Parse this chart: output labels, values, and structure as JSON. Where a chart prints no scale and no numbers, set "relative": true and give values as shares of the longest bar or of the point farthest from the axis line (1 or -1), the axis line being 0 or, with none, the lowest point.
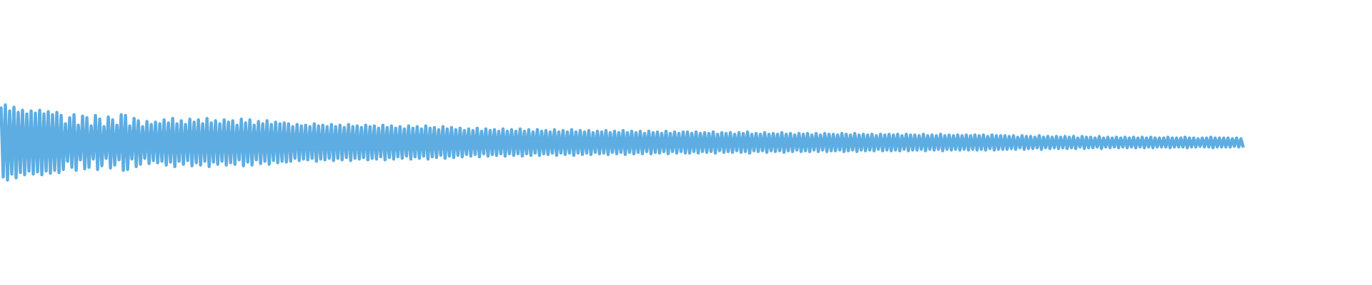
{
  "chart_data": {
    "type": "line",
    "relative": true,
    "color": "#5dade2",
    "tick_labels": false,
    "categories": [
      null,
      null,
      null,
      null,
      null,
      null,
      null,
      null,
      null,
      null,
      null,
      null,
      null,
      null,
      null,
      null,
      null,
      null,
      null,
      null,
      null,
      null,
      null,
      null,
      null,
      null,
      null,
      null,
      null,
      null,
      null,
      null,
      null,
      null,
      null,
      null,
      null,
      null,
      null,
      null,
      null,
      null,
      null,
      null,
      null,
      null,
      null,
      null,
      null,
      null,
      null,
      null,
      null,
      null,
      null,
      null,
      null,
      null,
      null,
      null,
      null,
      null,
      null,
      null,
      null,
      null,
      null,
      null,
      null,
      null,
      null,
      null,
      null,
      null,
      null,
      null,
      null,
      null,
      null,
      null,
      null,
      null,
      null,
      null,
      null,
      null,
      null,
      null,
      null,
      null,
      null,
      null,
      null,
      null,
      null,
      null,
      null,
      null,
      null,
      null,
      null,
      null,
      null,
      null,
      null,
      null,
      null,
      null,
      null,
      null,
      null,
      null,
      null,
      null,
      null,
      null,
      null,
      null,
      null,
      null,
      null,
      null,
      null,
      null,
      null,
      null,
      null,
      null,
      null,
      null,
      null,
      null,
      null,
      null,
      null,
      null,
      null,
      null,
      null,
      null,
      null,
      null,
      null,
      null,
      null,
      null,
      null,
      null,
      null,
      null,
      null,
      null,
      null,
      null,
      null,
      null,
      null,
      null,
      null,
      null,
      null,
      null,
      null,
      null,
      null,
      null,
      null,
      null,
      null,
      null,
      null,
      null,
      null,
      null,
      null,
      null,
      null,
      null,
      null,
      null,
      null,
      null,
      null,
      null,
      null,
      null,
      null,
      null,
      null,
      null,
      null,
      null,
      null,
      null,
      null,
      null,
      null,
      null,
      null,
      null,
      null,
      null,
      null,
      null,
      null,
      null,
      null,
      null,
      null,
      null,
      null,
      null,
      null,
      null,
      null,
      null,
      null,
      null,
      null,
      null,
      null,
      null,
      null,
      null,
      null,
      null,
      null,
      null,
      null,
      null,
      null,
      null,
      null,
      null,
      null,
      null,
      null,
      null,
      null,
      null,
      null,
      null,
      null,
      null,
      null,
      null,
      null,
      null,
      null,
      null,
      null,
      null,
      null,
      null,
      null,
      null,
      null,
      null,
      null,
      null,
      null,
      null,
      null,
      null,
      null,
      null,
      null,
      null,
      null,
      null,
      null,
      null,
      null,
      null,
      null,
      null,
      null,
      null,
      null,
      null,
      null,
      null,
      null,
      null,
      null,
      null,
      null,
      null,
      null,
      null,
      null,
      null,
      null,
      null,
      null,
      null,
      null,
      null,
      null,
      null,
      null,
      null,
      null,
      null,
      null,
      null,
      null,
      null,
      null,
      null,
      null,
      null,
      null,
      null,
      null,
      null,
      null,
      null,
      null,
      null,
      null,
      null,
      null,
      null,
      null,
      null,
      null,
      null,
      null,
      null,
      null,
      null,
      null,
      null,
      null,
      null,
      null,
      null,
      null,
      null,
      null,
      null,
      null,
      null,
      null,
      null,
      null,
      null,
      null,
      null,
      null,
      null,
      null,
      null,
      null,
      null,
      null,
      null,
      null,
      null,
      null,
      null,
      null,
      null,
      null,
      null,
      null,
      null,
      null,
      null,
      null,
      null,
      null,
      null,
      null,
      null,
      null,
      null,
      null,
      null,
      null,
      null,
      null,
      null,
      null,
      null,
      null,
      null,
      null,
      null,
      null,
      null,
      null,
      null,
      null,
      null,
      null,
      null,
      null,
      null,
      null,
      null,
      null,
      null,
      null,
      null,
      null,
      null,
      null,
      null,
      null,
      null,
      null,
      null,
      null,
      null,
      null,
      null,
      null,
      null,
      null,
      null,
      null,
      null,
      null,
      null,
      null,
      null,
      null,
      null,
      null,
      null,
      null,
      null,
      null,
      null,
      null,
      null,
      null,
      null,
      null,
      null,
      null,
      null,
      null,
      null,
      null,
      null,
      null,
      null,
      null,
      null,
      null,
      null,
      null,
      null,
      null,
      null,
      null,
      null,
      null,
      null,
      null,
      null,
      null,
      null,
      null,
      null,
      null,
      null,
      null,
      null,
      null,
      null,
      null,
      null,
      null,
      null,
      null,
      null,
      null,
      null,
      null,
      null,
      null,
      null,
      null,
      null,
      null,
      null,
      null,
      null,
      null,
      null,
      null,
      null,
      null,
      null,
      null,
      null,
      null,
      null,
      null,
      null,
      null,
      null,
      null,
      null,
      null,
      null,
      null,
      null,
      null,
      null,
      null,
      null,
      null,
      null,
      null,
      null,
      null,
      null,
      null,
      null,
      null,
      null,
      null,
      null,
      null,
      null,
      null,
      null,
      null,
      null,
      null,
      null,
      null,
      null,
      null,
      null,
      null,
      null,
      null,
      null,
      null,
      null,
      null,
      null,
      null,
      null,
      null,
      null,
      null,
      null,
      null,
      null,
      null,
      null,
      null,
      null,
      null,
      null,
      null,
      null,
      null,
      null,
      null,
      null,
      null,
      null,
      null,
      null,
      null,
      null,
      null,
      null,
      null,
      null,
      null,
      null
    ],
    "values": [
      0.96,
      0.04,
      1.0,
      0.0,
      0.92,
      0.08,
      0.97,
      0.03,
      0.9,
      0.1,
      0.93,
      0.07,
      0.88,
      0.12,
      0.92,
      0.08,
      0.89,
      0.11,
      0.93,
      0.07,
      0.88,
      0.12,
      0.91,
      0.09,
      0.87,
      0.13,
      0.9,
      0.1,
      0.86,
      0.14,
      0.75,
      0.25,
      0.83,
      0.17,
      0.87,
      0.13,
      0.73,
      0.27,
      0.85,
      0.15,
      0.83,
      0.17,
      0.72,
      0.28,
      0.86,
      0.14,
      0.81,
      0.19,
      0.71,
      0.29,
      0.84,
      0.16,
      0.8,
      0.2,
      0.73,
      0.27,
      0.87,
      0.13,
      0.86,
      0.14,
      0.72,
      0.28,
      0.82,
      0.18,
      0.79,
      0.21,
      0.71,
      0.29,
      0.78,
      0.22,
      0.74,
      0.26,
      0.77,
      0.23,
      0.75,
      0.25,
      0.8,
      0.2,
      0.76,
      0.24,
      0.82,
      0.18,
      0.75,
      0.25,
      0.79,
      0.21,
      0.74,
      0.26,
      0.81,
      0.19,
      0.77,
      0.23,
      0.8,
      0.2,
      0.75,
      0.25,
      0.82,
      0.18,
      0.76,
      0.24,
      0.79,
      0.21,
      0.75,
      0.25,
      0.8,
      0.2,
      0.77,
      0.23,
      0.79,
      0.21,
      0.73,
      0.27,
      0.81,
      0.19,
      0.76,
      0.24,
      0.8,
      0.2,
      0.73,
      0.27,
      0.78,
      0.22,
      0.75,
      0.25,
      0.79,
      0.21,
      0.74,
      0.26,
      0.77,
      0.23,
      0.75,
      0.25,
      0.76,
      0.24,
      0.75,
      0.25,
      0.71,
      0.29,
      0.74,
      0.26,
      0.72,
      0.28,
      0.73,
      0.27,
      0.71,
      0.29,
      0.75,
      0.25,
      0.72,
      0.28,
      0.73,
      0.27,
      0.71,
      0.29,
      0.74,
      0.26,
      0.71,
      0.29,
      0.73,
      0.27,
      0.7,
      0.3,
      0.74,
      0.26,
      0.71,
      0.29,
      0.72,
      0.28,
      0.7,
      0.3,
      0.73,
      0.27,
      0.71,
      0.29,
      0.72,
      0.28,
      0.69,
      0.31,
      0.73,
      0.27,
      0.7,
      0.3,
      0.72,
      0.28,
      0.69,
      0.31,
      0.71,
      0.29,
      0.68,
      0.32,
      0.72,
      0.28,
      0.69,
      0.31,
      0.71,
      0.29,
      0.68,
      0.32,
      0.72,
      0.28,
      0.69,
      0.31,
      0.7,
      0.3,
      0.67,
      0.33,
      0.71,
      0.29,
      0.68,
      0.32,
      0.7,
      0.3,
      0.67,
      0.33,
      0.69,
      0.31,
      0.66,
      0.34,
      0.68,
      0.32,
      0.66,
      0.34,
      0.69,
      0.31,
      0.65,
      0.35,
      0.68,
      0.32,
      0.66,
      0.34,
      0.67,
      0.33,
      0.65,
      0.35,
      0.68,
      0.32,
      0.65,
      0.35,
      0.67,
      0.33,
      0.65,
      0.35,
      0.68,
      0.32,
      0.65,
      0.35,
      0.67,
      0.33,
      0.64,
      0.36,
      0.67,
      0.33,
      0.65,
      0.35,
      0.66,
      0.34,
      0.64,
      0.36,
      0.67,
      0.33,
      0.64,
      0.36,
      0.66,
      0.34,
      0.64,
      0.36,
      0.67,
      0.33,
      0.64,
      0.36,
      0.66,
      0.34,
      0.64,
      0.36,
      0.66,
      0.34,
      0.63,
      0.37,
      0.65,
      0.35,
      0.64,
      0.36,
      0.66,
      0.34,
      0.63,
      0.37,
      0.65,
      0.35,
      0.63,
      0.37,
      0.66,
      0.34,
      0.63,
      0.37,
      0.65,
      0.35,
      0.63,
      0.37,
      0.65,
      0.35,
      0.62,
      0.38,
      0.65,
      0.35,
      0.63,
      0.37,
      0.64,
      0.36,
      0.62,
      0.38,
      0.65,
      0.35,
      0.62,
      0.38,
      0.64,
      0.36,
      0.62,
      0.38,
      0.64,
      0.36,
      0.64,
      0.36,
      0.62,
      0.38,
      0.64,
      0.36,
      0.62,
      0.38,
      0.63,
      0.37,
      0.62,
      0.38,
      0.64,
      0.36,
      0.61,
      0.39,
      0.63,
      0.37,
      0.62,
      0.38,
      0.63,
      0.37,
      0.61,
      0.39,
      0.63,
      0.37,
      0.62,
      0.38,
      0.64,
      0.36,
      0.61,
      0.39,
      0.62,
      0.38,
      0.61,
      0.39,
      0.63,
      0.37,
      0.61,
      0.39,
      0.62,
      0.38,
      0.61,
      0.39,
      0.63,
      0.37,
      0.61,
      0.39,
      0.62,
      0.38,
      0.6,
      0.4,
      0.62,
      0.38,
      0.61,
      0.39,
      0.62,
      0.38,
      0.6,
      0.4,
      0.62,
      0.38,
      0.6,
      0.4,
      0.62,
      0.38,
      0.61,
      0.39,
      0.61,
      0.39,
      0.6,
      0.4,
      0.62,
      0.38,
      0.61,
      0.39,
      0.6,
      0.4,
      0.62,
      0.38,
      0.6,
      0.4,
      0.61,
      0.39,
      0.6,
      0.4,
      0.61,
      0.39,
      0.59,
      0.41,
      0.61,
      0.39,
      0.6,
      0.4,
      0.61,
      0.39,
      0.6,
      0.4,
      0.61,
      0.39,
      0.59,
      0.41,
      0.61,
      0.39,
      0.6,
      0.4,
      0.6,
      0.4,
      0.59,
      0.41,
      0.61,
      0.39,
      0.59,
      0.41,
      0.6,
      0.4,
      0.59,
      0.41,
      0.61,
      0.39,
      0.59,
      0.41,
      0.6,
      0.4,
      0.59,
      0.41,
      0.6,
      0.4,
      0.59,
      0.41,
      0.6,
      0.4,
      0.59,
      0.41,
      0.6,
      0.4,
      0.59,
      0.41,
      0.6,
      0.4,
      0.58,
      0.42,
      0.6,
      0.4,
      0.59,
      0.41,
      0.59,
      0.41,
      0.59,
      0.41,
      0.58,
      0.42,
      0.59,
      0.41,
      0.57,
      0.43,
      0.59,
      0.41,
      0.58,
      0.42,
      0.58,
      0.42,
      0.57,
      0.43,
      0.59,
      0.41,
      0.57,
      0.43,
      0.58,
      0.42,
      0.57,
      0.43,
      0.58,
      0.42,
      0.57,
      0.43,
      0.58,
      0.42,
      0.57,
      0.43,
      0.58,
      0.42,
      0.56,
      0.44,
      0.58,
      0.42,
      0.57,
      0.43,
      0.57,
      0.43,
      0.56,
      0.44,
      0.58,
      0.42,
      0.56,
      0.44,
      0.57,
      0.43,
      0.56,
      0.44,
      0.57,
      0.43,
      0.56,
      0.44,
      0.57,
      0.43,
      0.56,
      0.44,
      0.57,
      0.43,
      0.56,
      0.44,
      0.57,
      0.43,
      0.56,
      0.44,
      0.57,
      0.43,
      0.56,
      0.44,
      0.56,
      0.44,
      0.56,
      0.44,
      0.57,
      0.43,
      0.56,
      0.44,
      0.56,
      0.44,
      0.56,
      0.44,
      0.57,
      0.43,
      0.56,
      0.44,
      0.56,
      0.44,
      0.55,
      0.45,
      0.56,
      0.44,
      0.56,
      0.44,
      0.57,
      0.43,
      0.56,
      0.44,
      0.56,
      0.44,
      0.56,
      0.44,
      0.56,
      0.44,
      0.55,
      0.45,
      0.56,
      0.44,
      0.55,
      0.45
    ]
  }
}
